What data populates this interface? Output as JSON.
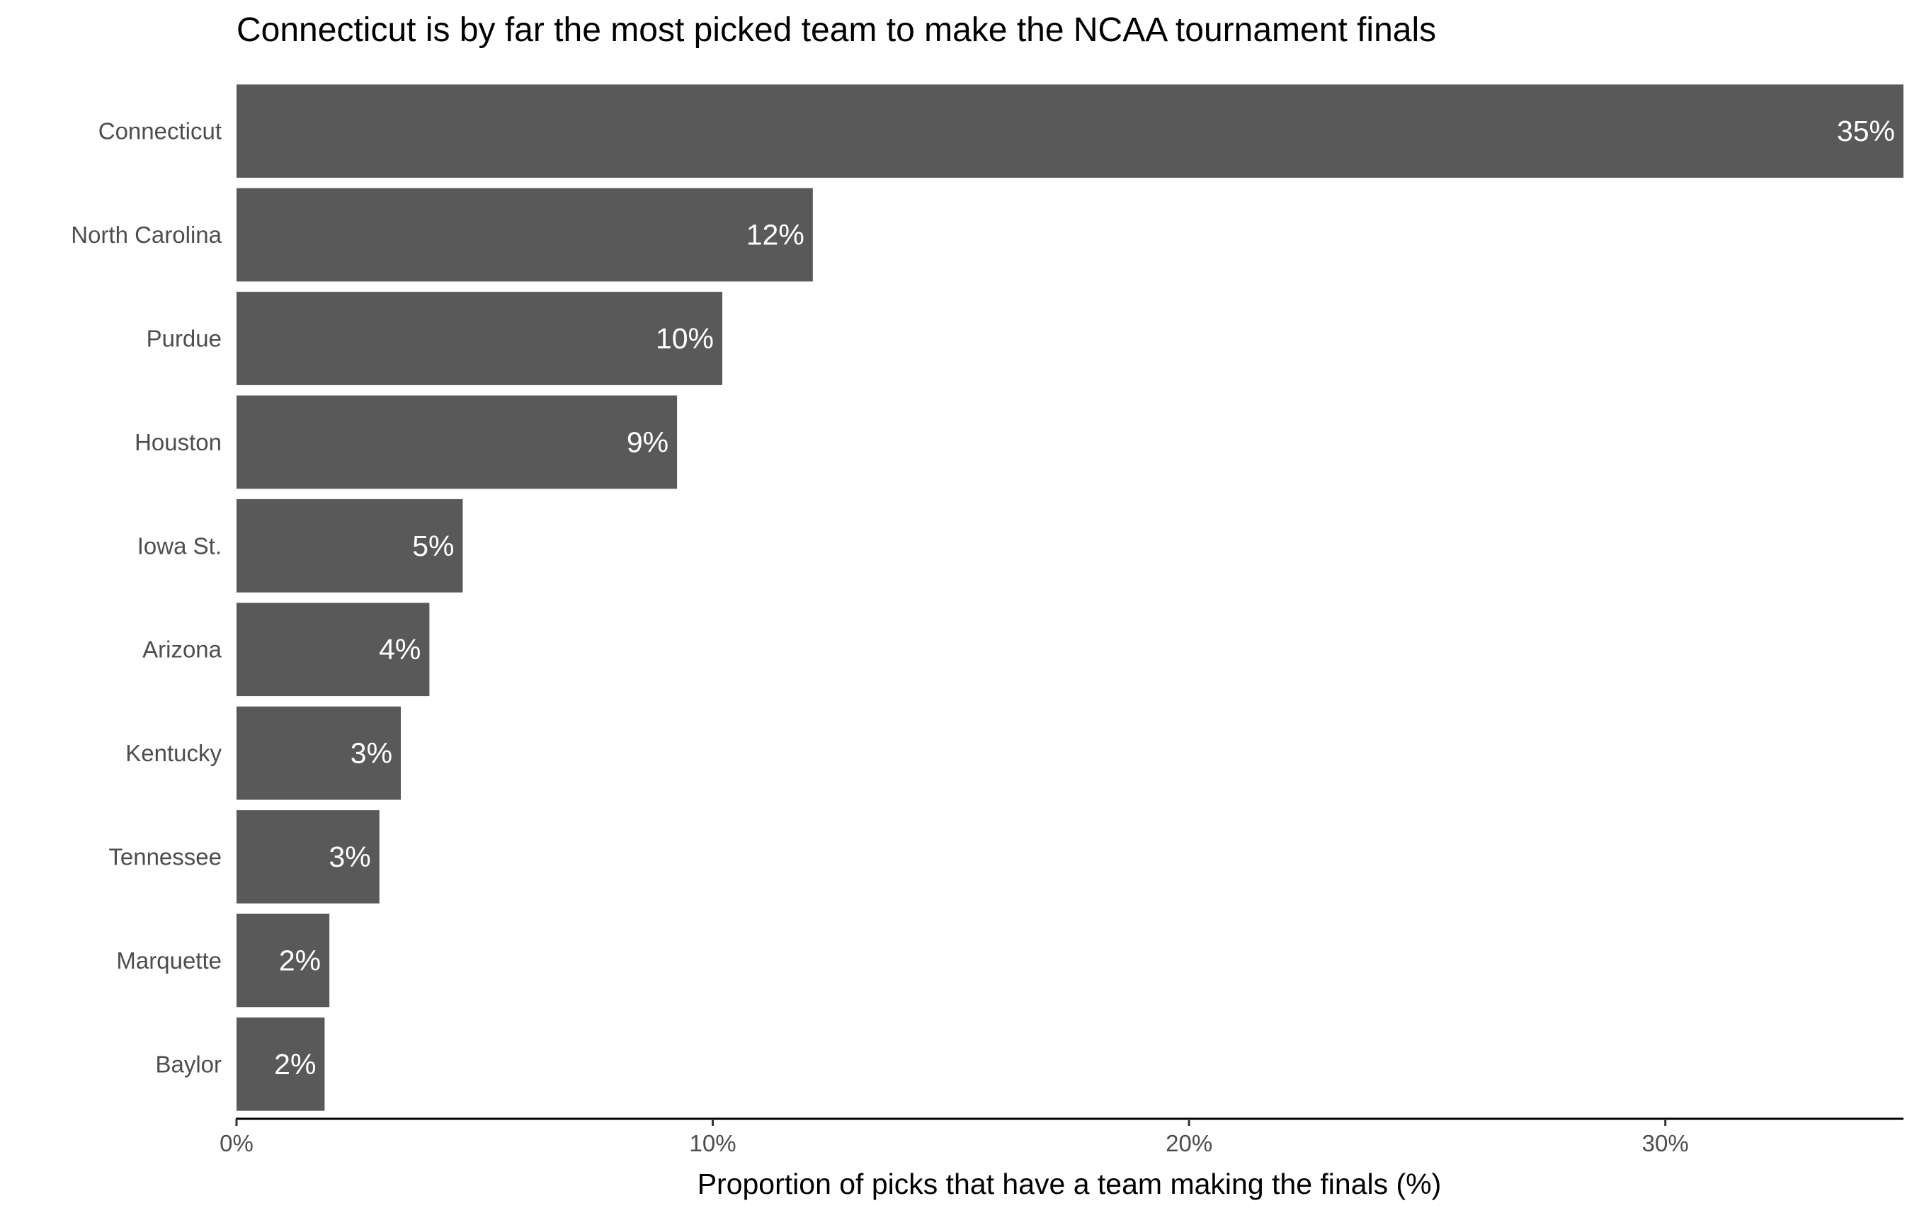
{
  "chart_data": {
    "type": "bar",
    "orientation": "horizontal",
    "title": "Connecticut is by far the most picked team to make the NCAA tournament finals",
    "xlabel": "Proportion of picks that have a team making the finals (%)",
    "ylabel": "",
    "categories": [
      "Connecticut",
      "North Carolina",
      "Purdue",
      "Houston",
      "Iowa St.",
      "Arizona",
      "Kentucky",
      "Tennessee",
      "Marquette",
      "Baylor"
    ],
    "values": [
      35,
      12.1,
      10.2,
      9.25,
      4.75,
      4.05,
      3.45,
      3.0,
      1.95,
      1.85
    ],
    "data_labels": [
      "35%",
      "12%",
      "10%",
      "9%",
      "5%",
      "4%",
      "3%",
      "3%",
      "2%",
      "2%"
    ],
    "xlim": [
      0,
      35
    ],
    "xticks": [
      0,
      10,
      20,
      30
    ],
    "xtick_labels": [
      "0%",
      "10%",
      "20%",
      "30%"
    ],
    "grid": false,
    "legend": "none",
    "bar_color": "#595959",
    "label_color": "#ffffff"
  }
}
